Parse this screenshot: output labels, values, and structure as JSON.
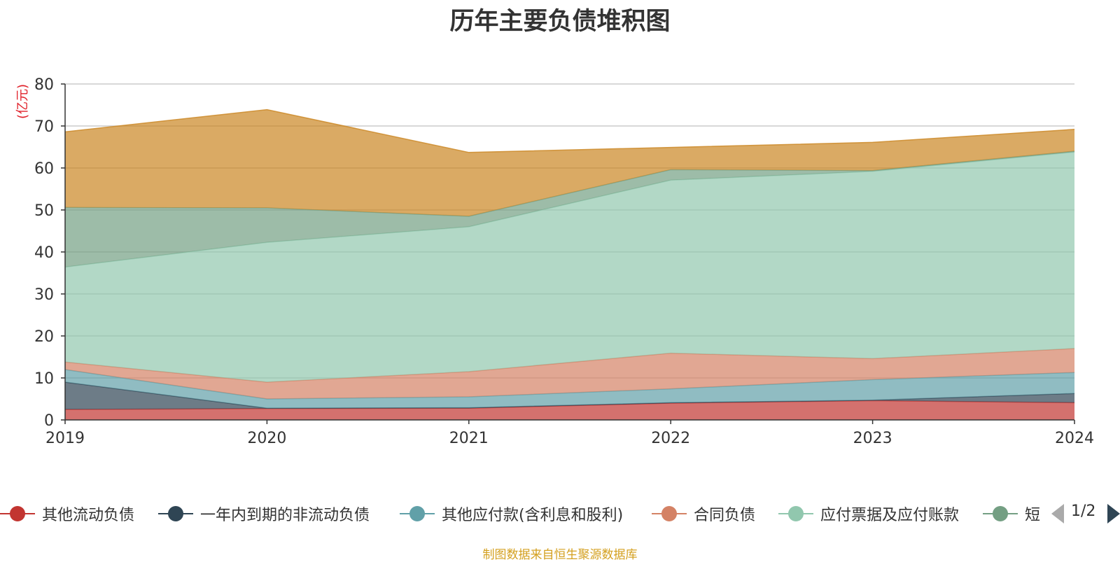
{
  "title": "历年主要负债堆积图",
  "unit_label": "(亿元)",
  "source_note": "制图数据来自恒生聚源数据库",
  "pager": {
    "text": "1/2"
  },
  "chart_data": {
    "type": "area",
    "stacked": true,
    "title": "历年主要负债堆积图",
    "ylabel": "(亿元)",
    "x": [
      "2019",
      "2020",
      "2021",
      "2022",
      "2023",
      "2024"
    ],
    "ylim": [
      0,
      80
    ],
    "yticks": [
      0,
      10,
      20,
      30,
      40,
      50,
      60,
      70,
      80
    ],
    "grid": true,
    "legend_position": "bottom",
    "series": [
      {
        "name": "其他流动负债",
        "color": "#c23531",
        "values": [
          2.5,
          2.7,
          2.8,
          4.0,
          4.6,
          4.1
        ]
      },
      {
        "name": "一年内到期的非流动负债",
        "color": "#2f4554",
        "values": [
          6.5,
          0.1,
          0.1,
          0.1,
          0.1,
          2.2
        ]
      },
      {
        "name": "其他应付款(含利息和股利)",
        "color": "#61a0a8",
        "values": [
          3.0,
          2.2,
          2.6,
          3.3,
          4.9,
          5.0
        ]
      },
      {
        "name": "合同负债",
        "color": "#d48265",
        "values": [
          1.8,
          4.0,
          6.0,
          8.5,
          5.0,
          5.7
        ]
      },
      {
        "name": "应付票据及应付账款",
        "color": "#91c7ae",
        "values": [
          22.6,
          33.3,
          34.5,
          41.2,
          44.6,
          46.8
        ]
      },
      {
        "name": "短期借款",
        "color": "#749f83",
        "values": [
          14.2,
          8.2,
          2.5,
          2.5,
          0.2,
          0.2
        ]
      },
      {
        "name": "",
        "color": "#ca8622",
        "values": [
          18.0,
          23.4,
          15.2,
          5.3,
          6.7,
          5.2
        ]
      }
    ]
  },
  "legend": {
    "visible_items": [
      {
        "label": "其他流动负债",
        "color": "#c23531"
      },
      {
        "label": "一年内到期的非流动负债",
        "color": "#2f4554"
      },
      {
        "label": "其他应付款(含利息和股利)",
        "color": "#61a0a8"
      },
      {
        "label": "合同负债",
        "color": "#d48265"
      },
      {
        "label": "应付票据及应付账款",
        "color": "#91c7ae"
      },
      {
        "label": "短",
        "color": "#749f83"
      }
    ]
  }
}
